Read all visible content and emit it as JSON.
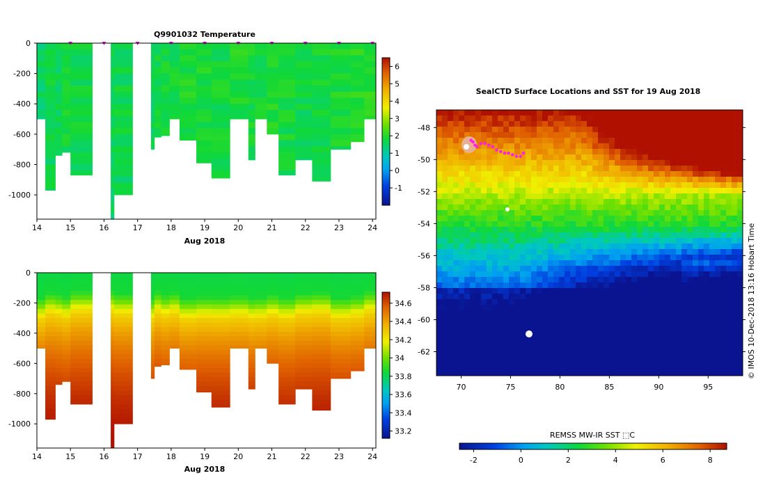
{
  "chart_data": [
    {
      "type": "heatmap",
      "title": "Q9901032  Temperature",
      "xlabel": "Aug 2018",
      "ylabel": "",
      "x_range": [
        14,
        24.1
      ],
      "y_range": [
        -1160,
        0
      ],
      "x_ticks": [
        "14",
        "15",
        "16",
        "17",
        "18",
        "19",
        "20",
        "21",
        "22",
        "23",
        "24"
      ],
      "y_ticks": [
        "0",
        "-200",
        "-400",
        "-600",
        "-800",
        "-1000"
      ],
      "profile_markers_day": [
        15.0,
        16.0,
        17.0,
        18.0,
        19.0,
        20.0,
        21.0,
        22.0,
        23.0,
        24.0
      ],
      "colorbar_ticks": [
        "-1",
        "0",
        "1",
        "2",
        "3",
        "4",
        "5",
        "6"
      ],
      "colorbar_range": [
        -2,
        6.5
      ],
      "profiles": [
        {
          "x0": 14.0,
          "x1": 14.25,
          "depth": 500,
          "value": 1.5
        },
        {
          "x0": 14.25,
          "x1": 14.55,
          "depth": 970,
          "value": 1.7
        },
        {
          "x0": 14.55,
          "x1": 14.75,
          "depth": 740,
          "value": 1.6
        },
        {
          "x0": 14.75,
          "x1": 15.0,
          "depth": 720,
          "value": 1.8
        },
        {
          "x0": 15.0,
          "x1": 15.65,
          "depth": 870,
          "value": 1.7
        },
        {
          "x0": 16.2,
          "x1": 16.3,
          "depth": 1160,
          "value": 1.6
        },
        {
          "x0": 16.3,
          "x1": 16.85,
          "depth": 1000,
          "value": 1.7
        },
        {
          "x0": 17.4,
          "x1": 17.5,
          "depth": 700,
          "value": 1.6
        },
        {
          "x0": 17.5,
          "x1": 17.7,
          "depth": 620,
          "value": 1.7
        },
        {
          "x0": 17.7,
          "x1": 17.95,
          "depth": 610,
          "value": 1.8
        },
        {
          "x0": 17.95,
          "x1": 18.25,
          "depth": 500,
          "value": 1.8
        },
        {
          "x0": 18.25,
          "x1": 18.75,
          "depth": 640,
          "value": 1.9
        },
        {
          "x0": 18.75,
          "x1": 19.2,
          "depth": 790,
          "value": 1.9
        },
        {
          "x0": 19.2,
          "x1": 19.75,
          "depth": 890,
          "value": 1.8
        },
        {
          "x0": 19.75,
          "x1": 20.3,
          "depth": 500,
          "value": 1.9
        },
        {
          "x0": 20.3,
          "x1": 20.5,
          "depth": 770,
          "value": 1.8
        },
        {
          "x0": 20.5,
          "x1": 20.85,
          "depth": 500,
          "value": 1.8
        },
        {
          "x0": 20.85,
          "x1": 21.2,
          "depth": 600,
          "value": 1.9
        },
        {
          "x0": 21.2,
          "x1": 21.7,
          "depth": 870,
          "value": 1.8
        },
        {
          "x0": 21.7,
          "x1": 22.2,
          "depth": 770,
          "value": 1.7
        },
        {
          "x0": 22.2,
          "x1": 22.75,
          "depth": 910,
          "value": 1.8
        },
        {
          "x0": 22.75,
          "x1": 23.35,
          "depth": 700,
          "value": 1.9
        },
        {
          "x0": 23.35,
          "x1": 23.75,
          "depth": 650,
          "value": 2.0
        },
        {
          "x0": 23.75,
          "x1": 24.1,
          "depth": 500,
          "value": 2.0
        }
      ]
    },
    {
      "type": "heatmap",
      "title": "",
      "xlabel": "Aug 2018",
      "ylabel": "",
      "x_range": [
        14,
        24.1
      ],
      "y_range": [
        -1160,
        0
      ],
      "x_ticks": [
        "14",
        "15",
        "16",
        "17",
        "18",
        "19",
        "20",
        "21",
        "22",
        "23",
        "24"
      ],
      "y_ticks": [
        "0",
        "-200",
        "-400",
        "-600",
        "-800",
        "-1000"
      ],
      "colorbar_ticks": [
        "33.2",
        "33.4",
        "33.6",
        "33.8",
        "34",
        "34.2",
        "34.4",
        "34.6"
      ],
      "colorbar_range": [
        33.12,
        34.72
      ],
      "profiles": [
        {
          "x0": 14.0,
          "x1": 14.25,
          "depth": 500
        },
        {
          "x0": 14.25,
          "x1": 14.55,
          "depth": 970
        },
        {
          "x0": 14.55,
          "x1": 14.75,
          "depth": 740
        },
        {
          "x0": 14.75,
          "x1": 15.0,
          "depth": 720
        },
        {
          "x0": 15.0,
          "x1": 15.65,
          "depth": 870
        },
        {
          "x0": 16.2,
          "x1": 16.3,
          "depth": 1160
        },
        {
          "x0": 16.3,
          "x1": 16.85,
          "depth": 1000
        },
        {
          "x0": 17.4,
          "x1": 17.5,
          "depth": 700
        },
        {
          "x0": 17.5,
          "x1": 17.7,
          "depth": 620
        },
        {
          "x0": 17.7,
          "x1": 17.95,
          "depth": 610
        },
        {
          "x0": 17.95,
          "x1": 18.25,
          "depth": 500
        },
        {
          "x0": 18.25,
          "x1": 18.75,
          "depth": 640
        },
        {
          "x0": 18.75,
          "x1": 19.2,
          "depth": 790
        },
        {
          "x0": 19.2,
          "x1": 19.75,
          "depth": 890
        },
        {
          "x0": 19.75,
          "x1": 20.3,
          "depth": 500
        },
        {
          "x0": 20.3,
          "x1": 20.5,
          "depth": 770
        },
        {
          "x0": 20.5,
          "x1": 20.85,
          "depth": 500
        },
        {
          "x0": 20.85,
          "x1": 21.2,
          "depth": 600
        },
        {
          "x0": 21.2,
          "x1": 21.7,
          "depth": 870
        },
        {
          "x0": 21.7,
          "x1": 22.2,
          "depth": 770
        },
        {
          "x0": 22.2,
          "x1": 22.75,
          "depth": 910
        },
        {
          "x0": 22.75,
          "x1": 23.35,
          "depth": 700
        },
        {
          "x0": 23.35,
          "x1": 23.75,
          "depth": 650
        },
        {
          "x0": 23.75,
          "x1": 24.1,
          "depth": 500
        }
      ],
      "salinity_profile": [
        {
          "depth": 0,
          "value": 33.82
        },
        {
          "depth": 150,
          "value": 33.85
        },
        {
          "depth": 200,
          "value": 33.98
        },
        {
          "depth": 250,
          "value": 34.15
        },
        {
          "depth": 300,
          "value": 34.28
        },
        {
          "depth": 400,
          "value": 34.4
        },
        {
          "depth": 500,
          "value": 34.48
        },
        {
          "depth": 600,
          "value": 34.55
        },
        {
          "depth": 700,
          "value": 34.6
        },
        {
          "depth": 850,
          "value": 34.66
        },
        {
          "depth": 1000,
          "value": 34.7
        },
        {
          "depth": 1160,
          "value": 34.72
        }
      ]
    },
    {
      "type": "heatmap",
      "title": "SealCTD Surface Locations and SST for 19 Aug 2018",
      "xlabel": "",
      "ylabel": "",
      "x_range": [
        67.5,
        98.5
      ],
      "y_range": [
        -63.5,
        -46.9
      ],
      "x_ticks": [
        "70",
        "75",
        "80",
        "85",
        "90",
        "95"
      ],
      "y_ticks": [
        "-48",
        "-50",
        "-52",
        "-54",
        "-56",
        "-58",
        "-60",
        "-62"
      ],
      "colorbar_label": "REMSS MW-IR SST ⬚C",
      "colorbar_ticks": [
        "-2",
        "0",
        "2",
        "4",
        "6",
        "8"
      ],
      "colorbar_range": [
        -2.6,
        8.7
      ],
      "credit": "©  IMOS 10-Dec-2018 13:16 Hobart Time",
      "seal_locations": [
        {
          "lon": 71.0,
          "lat": -48.8
        },
        {
          "lon": 71.2,
          "lat": -48.9
        },
        {
          "lon": 71.4,
          "lat": -49.1
        },
        {
          "lon": 71.6,
          "lat": -49.2
        },
        {
          "lon": 72.0,
          "lat": -49.0
        },
        {
          "lon": 72.4,
          "lat": -49.0
        },
        {
          "lon": 72.8,
          "lat": -49.1
        },
        {
          "lon": 73.2,
          "lat": -49.2
        },
        {
          "lon": 73.6,
          "lat": -49.4
        },
        {
          "lon": 74.0,
          "lat": -49.5
        },
        {
          "lon": 74.4,
          "lat": -49.6
        },
        {
          "lon": 74.8,
          "lat": -49.6
        },
        {
          "lon": 75.2,
          "lat": -49.7
        },
        {
          "lon": 75.6,
          "lat": -49.8
        },
        {
          "lon": 76.0,
          "lat": -49.8
        },
        {
          "lon": 76.3,
          "lat": -49.6
        }
      ]
    }
  ]
}
